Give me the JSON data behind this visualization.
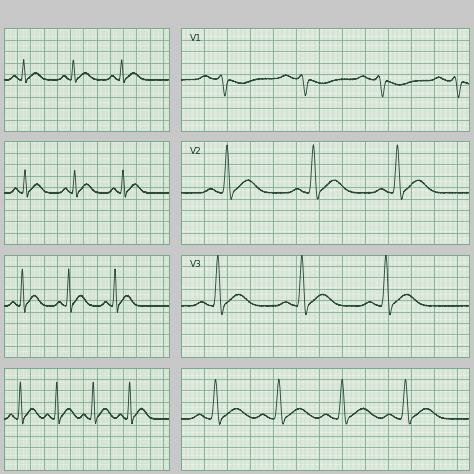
{
  "background_color": "#c8c8c8",
  "panel_bg": "#e8f0e8",
  "grid_major_color": "#7aaa8a",
  "grid_minor_color": "#aacaaa",
  "ecg_color": "#2a4a3a",
  "label_color": "#1a3a2a",
  "figsize": [
    4.74,
    4.74
  ],
  "dpi": 100,
  "panels": [
    {
      "row": 0,
      "col": 0,
      "label": ""
    },
    {
      "row": 0,
      "col": 1,
      "label": "V1"
    },
    {
      "row": 1,
      "col": 0,
      "label": ""
    },
    {
      "row": 1,
      "col": 1,
      "label": "V2"
    },
    {
      "row": 2,
      "col": 0,
      "label": ""
    },
    {
      "row": 2,
      "col": 1,
      "label": "V3"
    },
    {
      "row": 3,
      "col": 0,
      "label": ""
    },
    {
      "row": 3,
      "col": 1,
      "label": ""
    }
  ]
}
